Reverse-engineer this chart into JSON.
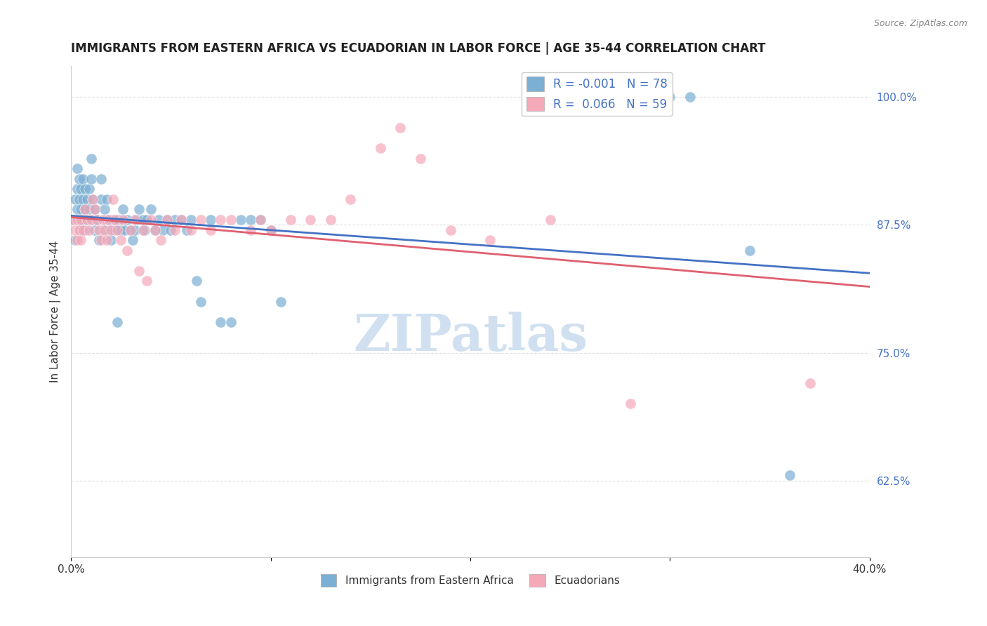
{
  "title": "IMMIGRANTS FROM EASTERN AFRICA VS ECUADORIAN IN LABOR FORCE | AGE 35-44 CORRELATION CHART",
  "source": "Source: ZipAtlas.com",
  "xlabel_label": "",
  "ylabel_label": "In Labor Force | Age 35-44",
  "xlim": [
    0.0,
    0.4
  ],
  "ylim": [
    0.55,
    1.03
  ],
  "xticks": [
    0.0,
    0.1,
    0.2,
    0.3,
    0.4
  ],
  "xticklabels": [
    "0.0%",
    "",
    "",
    "",
    "40.0%"
  ],
  "ytick_positions": [
    0.625,
    0.75,
    0.875,
    1.0
  ],
  "ytick_labels": [
    "62.5%",
    "75.0%",
    "87.5%",
    "100.0%"
  ],
  "background_color": "#ffffff",
  "grid_color": "#dddddd",
  "blue_color": "#7bafd4",
  "pink_color": "#f4a8b8",
  "blue_line_color": "#4472c4",
  "pink_line_color": "#e06070",
  "annotation_color": "#4472c4",
  "legend_R_color": "#4472c4",
  "R_blue": -0.001,
  "N_blue": 78,
  "R_pink": 0.066,
  "N_pink": 59,
  "blue_scatter_x": [
    0.001,
    0.002,
    0.002,
    0.003,
    0.003,
    0.003,
    0.004,
    0.004,
    0.004,
    0.005,
    0.005,
    0.005,
    0.006,
    0.006,
    0.006,
    0.007,
    0.007,
    0.007,
    0.008,
    0.008,
    0.009,
    0.009,
    0.01,
    0.01,
    0.011,
    0.011,
    0.012,
    0.012,
    0.013,
    0.014,
    0.015,
    0.015,
    0.016,
    0.017,
    0.018,
    0.018,
    0.019,
    0.02,
    0.021,
    0.022,
    0.023,
    0.024,
    0.025,
    0.026,
    0.027,
    0.028,
    0.03,
    0.031,
    0.032,
    0.033,
    0.034,
    0.036,
    0.037,
    0.038,
    0.04,
    0.042,
    0.044,
    0.046,
    0.048,
    0.05,
    0.052,
    0.055,
    0.058,
    0.06,
    0.063,
    0.065,
    0.07,
    0.075,
    0.08,
    0.085,
    0.09,
    0.095,
    0.1,
    0.105,
    0.3,
    0.31,
    0.34,
    0.36
  ],
  "blue_scatter_y": [
    0.88,
    0.9,
    0.86,
    0.89,
    0.91,
    0.93,
    0.88,
    0.9,
    0.92,
    0.87,
    0.89,
    0.91,
    0.88,
    0.9,
    0.92,
    0.87,
    0.89,
    0.91,
    0.88,
    0.9,
    0.89,
    0.91,
    0.92,
    0.94,
    0.88,
    0.9,
    0.87,
    0.89,
    0.88,
    0.86,
    0.9,
    0.92,
    0.87,
    0.89,
    0.88,
    0.9,
    0.87,
    0.86,
    0.88,
    0.87,
    0.78,
    0.88,
    0.87,
    0.89,
    0.87,
    0.88,
    0.87,
    0.86,
    0.87,
    0.88,
    0.89,
    0.88,
    0.87,
    0.88,
    0.89,
    0.87,
    0.88,
    0.87,
    0.88,
    0.87,
    0.88,
    0.88,
    0.87,
    0.88,
    0.82,
    0.8,
    0.88,
    0.78,
    0.78,
    0.88,
    0.88,
    0.88,
    0.87,
    0.8,
    1.0,
    1.0,
    0.85,
    0.63
  ],
  "pink_scatter_x": [
    0.001,
    0.002,
    0.003,
    0.003,
    0.004,
    0.005,
    0.005,
    0.006,
    0.007,
    0.008,
    0.009,
    0.01,
    0.011,
    0.012,
    0.013,
    0.014,
    0.015,
    0.016,
    0.017,
    0.018,
    0.019,
    0.02,
    0.021,
    0.022,
    0.023,
    0.025,
    0.026,
    0.028,
    0.03,
    0.032,
    0.034,
    0.036,
    0.038,
    0.04,
    0.042,
    0.045,
    0.048,
    0.052,
    0.055,
    0.06,
    0.065,
    0.07,
    0.075,
    0.08,
    0.09,
    0.095,
    0.1,
    0.11,
    0.12,
    0.13,
    0.14,
    0.155,
    0.165,
    0.175,
    0.19,
    0.21,
    0.24,
    0.28,
    0.37
  ],
  "pink_scatter_y": [
    0.88,
    0.87,
    0.86,
    0.88,
    0.87,
    0.86,
    0.88,
    0.87,
    0.89,
    0.88,
    0.87,
    0.88,
    0.9,
    0.89,
    0.88,
    0.87,
    0.86,
    0.88,
    0.87,
    0.86,
    0.88,
    0.87,
    0.9,
    0.88,
    0.87,
    0.86,
    0.88,
    0.85,
    0.87,
    0.88,
    0.83,
    0.87,
    0.82,
    0.88,
    0.87,
    0.86,
    0.88,
    0.87,
    0.88,
    0.87,
    0.88,
    0.87,
    0.88,
    0.88,
    0.87,
    0.88,
    0.87,
    0.88,
    0.88,
    0.88,
    0.9,
    0.95,
    0.97,
    0.94,
    0.87,
    0.86,
    0.88,
    0.7,
    0.72
  ],
  "watermark_text": "ZIPatlas",
  "watermark_color": "#d0e0f0",
  "legend_label_blue": "Immigrants from Eastern Africa",
  "legend_label_pink": "Ecuadorians"
}
